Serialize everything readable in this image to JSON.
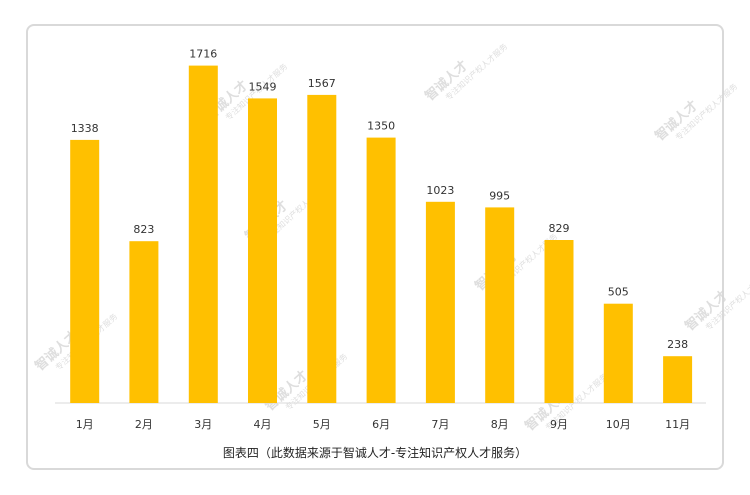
{
  "chart_data": {
    "type": "bar",
    "categories": [
      "1月",
      "2月",
      "3月",
      "4月",
      "5月",
      "6月",
      "7月",
      "8月",
      "9月",
      "10月",
      "11月"
    ],
    "values": [
      1338,
      823,
      1716,
      1549,
      1567,
      1350,
      1023,
      995,
      829,
      505,
      238
    ],
    "ylim": [
      0,
      1780
    ],
    "grid": false,
    "bar_color": "#ffc000"
  },
  "caption": "图表四（此数据来源于智诚人才-专注知识产权人才服务）",
  "watermark": {
    "title": "智诚人才",
    "subtitle": "专注知识产权人才服务"
  }
}
